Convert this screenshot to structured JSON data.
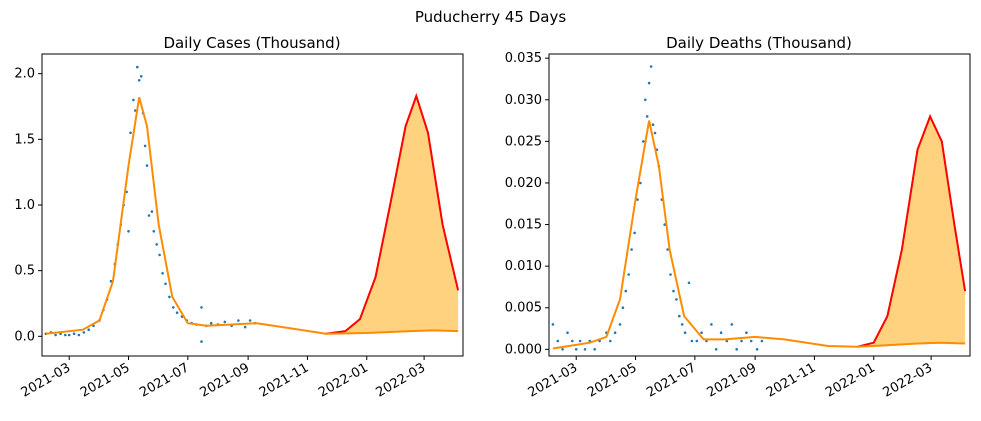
{
  "figure": {
    "title": "Puducherry 45 Days"
  },
  "chart_data": [
    {
      "type": "scatter",
      "title": "Daily Cases (Thousand)",
      "xlabel": "",
      "ylabel": "",
      "x_ticks": [
        "2021-03",
        "2021-05",
        "2021-07",
        "2021-09",
        "2021-11",
        "2022-01",
        "2022-03"
      ],
      "y_ticks": [
        "0.0",
        "0.5",
        "1.0",
        "1.5",
        "2.0"
      ],
      "xlim": [
        "2021-02-01",
        "2022-04-10"
      ],
      "ylim": [
        -0.15,
        2.15
      ],
      "colors": {
        "points": "#1f77b4",
        "fit": "#ff8c00",
        "upper": "#ff0000",
        "band": "#ffd27f"
      },
      "points": [
        [
          "2021-02-05",
          0.02
        ],
        [
          "2021-02-10",
          0.03
        ],
        [
          "2021-02-15",
          0.01
        ],
        [
          "2021-02-20",
          0.02
        ],
        [
          "2021-02-25",
          0.01
        ],
        [
          "2021-03-01",
          0.01
        ],
        [
          "2021-03-06",
          0.02
        ],
        [
          "2021-03-11",
          0.01
        ],
        [
          "2021-03-16",
          0.03
        ],
        [
          "2021-03-21",
          0.05
        ],
        [
          "2021-03-26",
          0.08
        ],
        [
          "2021-04-01",
          0.12
        ],
        [
          "2021-04-05",
          0.2
        ],
        [
          "2021-04-09",
          0.28
        ],
        [
          "2021-04-13",
          0.42
        ],
        [
          "2021-04-17",
          0.55
        ],
        [
          "2021-04-20",
          0.7
        ],
        [
          "2021-04-23",
          0.85
        ],
        [
          "2021-04-26",
          1.0
        ],
        [
          "2021-04-29",
          1.1
        ],
        [
          "2021-05-01",
          0.8
        ],
        [
          "2021-05-03",
          1.55
        ],
        [
          "2021-05-06",
          1.8
        ],
        [
          "2021-05-08",
          1.72
        ],
        [
          "2021-05-10",
          2.05
        ],
        [
          "2021-05-12",
          1.95
        ],
        [
          "2021-05-14",
          1.98
        ],
        [
          "2021-05-16",
          1.7
        ],
        [
          "2021-05-18",
          1.45
        ],
        [
          "2021-05-20",
          1.3
        ],
        [
          "2021-05-22",
          0.92
        ],
        [
          "2021-05-25",
          0.95
        ],
        [
          "2021-05-27",
          0.8
        ],
        [
          "2021-05-30",
          0.7
        ],
        [
          "2021-06-02",
          0.62
        ],
        [
          "2021-06-05",
          0.48
        ],
        [
          "2021-06-08",
          0.4
        ],
        [
          "2021-06-12",
          0.3
        ],
        [
          "2021-06-16",
          0.22
        ],
        [
          "2021-06-20",
          0.18
        ],
        [
          "2021-06-25",
          0.15
        ],
        [
          "2021-06-30",
          0.12
        ],
        [
          "2021-07-05",
          0.1
        ],
        [
          "2021-07-10",
          0.09
        ],
        [
          "2021-07-15",
          0.22
        ],
        [
          "2021-07-15",
          -0.04
        ],
        [
          "2021-07-20",
          0.08
        ],
        [
          "2021-07-25",
          0.1
        ],
        [
          "2021-08-01",
          0.09
        ],
        [
          "2021-08-08",
          0.11
        ],
        [
          "2021-08-15",
          0.08
        ],
        [
          "2021-08-22",
          0.12
        ],
        [
          "2021-08-29",
          0.07
        ],
        [
          "2021-09-03",
          0.12
        ],
        [
          "2021-09-08",
          0.1
        ]
      ],
      "fit": [
        [
          "2021-02-05",
          0.02
        ],
        [
          "2021-03-15",
          0.05
        ],
        [
          "2021-04-01",
          0.12
        ],
        [
          "2021-04-15",
          0.42
        ],
        [
          "2021-05-01",
          1.3
        ],
        [
          "2021-05-12",
          1.82
        ],
        [
          "2021-05-20",
          1.6
        ],
        [
          "2021-06-01",
          0.85
        ],
        [
          "2021-06-15",
          0.3
        ],
        [
          "2021-07-01",
          0.1
        ],
        [
          "2021-07-20",
          0.08
        ],
        [
          "2021-08-15",
          0.09
        ],
        [
          "2021-09-10",
          0.1
        ],
        [
          "2021-10-15",
          0.06
        ],
        [
          "2021-11-20",
          0.02
        ],
        [
          "2022-01-01",
          0.025
        ],
        [
          "2022-02-15",
          0.04
        ],
        [
          "2022-03-10",
          0.045
        ],
        [
          "2022-04-05",
          0.04
        ]
      ],
      "upper": [
        [
          "2021-11-20",
          0.02
        ],
        [
          "2021-12-10",
          0.04
        ],
        [
          "2021-12-25",
          0.13
        ],
        [
          "2022-01-10",
          0.45
        ],
        [
          "2022-01-25",
          1.0
        ],
        [
          "2022-02-10",
          1.6
        ],
        [
          "2022-02-21",
          1.83
        ],
        [
          "2022-03-05",
          1.55
        ],
        [
          "2022-03-20",
          0.85
        ],
        [
          "2022-04-05",
          0.35
        ]
      ]
    },
    {
      "type": "scatter",
      "title": "Daily Deaths (Thousand)",
      "xlabel": "",
      "ylabel": "",
      "x_ticks": [
        "2021-03",
        "2021-05",
        "2021-07",
        "2021-09",
        "2021-11",
        "2022-01",
        "2022-03"
      ],
      "y_ticks": [
        "0.000",
        "0.005",
        "0.010",
        "0.015",
        "0.020",
        "0.025",
        "0.030",
        "0.035"
      ],
      "xlim": [
        "2021-02-01",
        "2022-04-10"
      ],
      "ylim": [
        -0.0008,
        0.0355
      ],
      "colors": {
        "points": "#1f77b4",
        "fit": "#ff8c00",
        "upper": "#ff0000",
        "band": "#ffd27f"
      },
      "points": [
        [
          "2021-02-05",
          0.003
        ],
        [
          "2021-02-10",
          0.001
        ],
        [
          "2021-02-15",
          0.0
        ],
        [
          "2021-02-20",
          0.002
        ],
        [
          "2021-02-25",
          0.001
        ],
        [
          "2021-03-01",
          0.0
        ],
        [
          "2021-03-05",
          0.001
        ],
        [
          "2021-03-10",
          0.0
        ],
        [
          "2021-03-15",
          0.001
        ],
        [
          "2021-03-20",
          0.0
        ],
        [
          "2021-03-25",
          0.001
        ],
        [
          "2021-04-01",
          0.002
        ],
        [
          "2021-04-05",
          0.001
        ],
        [
          "2021-04-10",
          0.002
        ],
        [
          "2021-04-15",
          0.003
        ],
        [
          "2021-04-18",
          0.005
        ],
        [
          "2021-04-21",
          0.007
        ],
        [
          "2021-04-24",
          0.009
        ],
        [
          "2021-04-27",
          0.012
        ],
        [
          "2021-04-30",
          0.014
        ],
        [
          "2021-05-03",
          0.018
        ],
        [
          "2021-05-06",
          0.02
        ],
        [
          "2021-05-09",
          0.025
        ],
        [
          "2021-05-11",
          0.03
        ],
        [
          "2021-05-13",
          0.028
        ],
        [
          "2021-05-15",
          0.032
        ],
        [
          "2021-05-17",
          0.034
        ],
        [
          "2021-05-19",
          0.027
        ],
        [
          "2021-05-21",
          0.026
        ],
        [
          "2021-05-23",
          0.024
        ],
        [
          "2021-05-25",
          0.022
        ],
        [
          "2021-05-28",
          0.018
        ],
        [
          "2021-05-31",
          0.015
        ],
        [
          "2021-06-03",
          0.012
        ],
        [
          "2021-06-06",
          0.009
        ],
        [
          "2021-06-09",
          0.007
        ],
        [
          "2021-06-12",
          0.006
        ],
        [
          "2021-06-15",
          0.004
        ],
        [
          "2021-06-18",
          0.003
        ],
        [
          "2021-06-21",
          0.002
        ],
        [
          "2021-06-25",
          0.008
        ],
        [
          "2021-06-28",
          0.001
        ],
        [
          "2021-07-03",
          0.001
        ],
        [
          "2021-07-08",
          0.002
        ],
        [
          "2021-07-13",
          0.001
        ],
        [
          "2021-07-18",
          0.003
        ],
        [
          "2021-07-23",
          0.0
        ],
        [
          "2021-07-28",
          0.002
        ],
        [
          "2021-08-03",
          0.001
        ],
        [
          "2021-08-08",
          0.003
        ],
        [
          "2021-08-13",
          0.0
        ],
        [
          "2021-08-18",
          0.001
        ],
        [
          "2021-08-23",
          0.002
        ],
        [
          "2021-08-28",
          0.001
        ],
        [
          "2021-09-03",
          0.0
        ],
        [
          "2021-09-08",
          0.001
        ]
      ],
      "fit": [
        [
          "2021-02-05",
          0.0001
        ],
        [
          "2021-03-15",
          0.0008
        ],
        [
          "2021-04-01",
          0.0015
        ],
        [
          "2021-04-15",
          0.006
        ],
        [
          "2021-05-01",
          0.018
        ],
        [
          "2021-05-15",
          0.0275
        ],
        [
          "2021-05-25",
          0.022
        ],
        [
          "2021-06-05",
          0.012
        ],
        [
          "2021-06-20",
          0.004
        ],
        [
          "2021-07-10",
          0.0012
        ],
        [
          "2021-08-01",
          0.0012
        ],
        [
          "2021-09-01",
          0.0015
        ],
        [
          "2021-10-01",
          0.0012
        ],
        [
          "2021-11-15",
          0.0004
        ],
        [
          "2021-12-15",
          0.0003
        ],
        [
          "2022-01-15",
          0.0005
        ],
        [
          "2022-02-15",
          0.0007
        ],
        [
          "2022-03-10",
          0.0008
        ],
        [
          "2022-04-05",
          0.0007
        ]
      ],
      "upper": [
        [
          "2021-12-15",
          0.0003
        ],
        [
          "2022-01-01",
          0.0008
        ],
        [
          "2022-01-15",
          0.004
        ],
        [
          "2022-01-30",
          0.012
        ],
        [
          "2022-02-15",
          0.024
        ],
        [
          "2022-02-28",
          0.028
        ],
        [
          "2022-03-12",
          0.025
        ],
        [
          "2022-03-25",
          0.015
        ],
        [
          "2022-04-05",
          0.007
        ]
      ]
    }
  ]
}
